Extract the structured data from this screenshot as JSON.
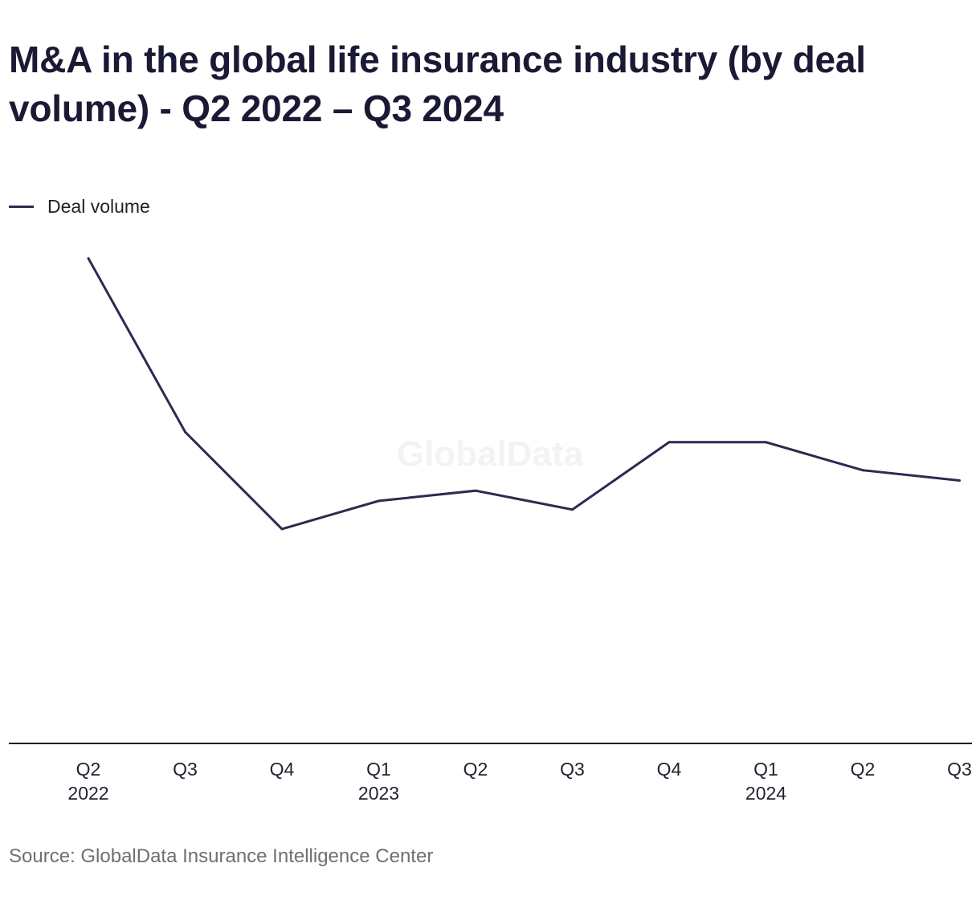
{
  "title": "M&A in the global life insurance industry (by deal volume) - Q2 2022 – Q3 2024",
  "source": "Source: GlobalData Insurance Intelligence Center",
  "watermark": "GlobalData",
  "colors": {
    "line": "#35264f",
    "axis": "#1b1a2b"
  },
  "chart_data": {
    "type": "line",
    "title": "M&A in the global life insurance industry (by deal volume) - Q2 2022 – Q3 2024",
    "xlabel": "",
    "ylabel": "",
    "grid": false,
    "legend_position": "top-left",
    "categories": [
      "Q2",
      "Q3",
      "Q4",
      "Q1",
      "Q2",
      "Q3",
      "Q4",
      "Q1",
      "Q2",
      "Q3"
    ],
    "category_years": [
      "2022",
      "",
      "",
      "2023",
      "",
      "",
      "",
      "2024",
      "",
      ""
    ],
    "ylim": [
      0,
      100
    ],
    "series": [
      {
        "name": "Deal volume",
        "values": [
          95,
          61,
          42,
          47.5,
          49.5,
          45.8,
          59,
          59,
          53.5,
          51.5
        ]
      }
    ]
  }
}
